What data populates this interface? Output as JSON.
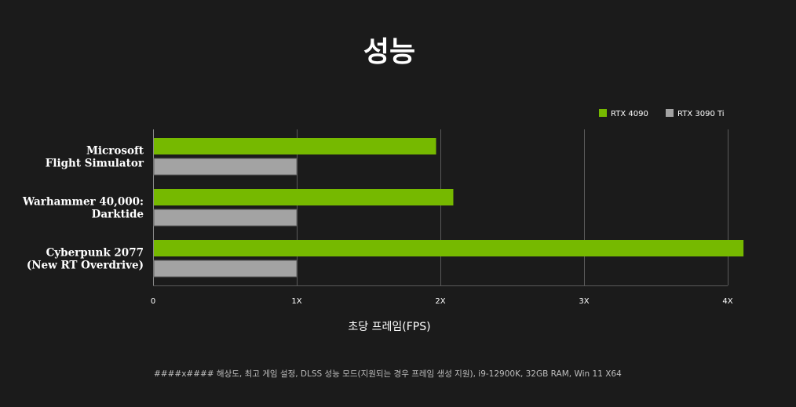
{
  "chart_data": {
    "type": "bar",
    "orientation": "horizontal",
    "title": "성능",
    "xlabel": "초당 프레임(FPS)",
    "ylabel": "",
    "categories": [
      [
        "Microsoft",
        "Flight Simulator"
      ],
      [
        "Warhammer 40,000:",
        "Darktide"
      ],
      [
        "Cyberpunk 2077",
        "(New RT Overdrive)"
      ]
    ],
    "series": [
      {
        "name": "RTX 4090",
        "color": "#76b900",
        "values": [
          1.97,
          2.09,
          4.11
        ]
      },
      {
        "name": "RTX 3090 Ti",
        "color": "#a3a3a3",
        "values": [
          1.0,
          1.0,
          1.0
        ]
      }
    ],
    "xlim": [
      0,
      4
    ],
    "xticks": [
      {
        "value": 0,
        "label": "0"
      },
      {
        "value": 1,
        "label": "1X"
      },
      {
        "value": 2,
        "label": "2X"
      },
      {
        "value": 3,
        "label": "3X"
      },
      {
        "value": 4,
        "label": "4X"
      }
    ],
    "grid": true,
    "legend_position": "top-right"
  },
  "footnote": "####x#### 해상도, 최고 게임 설정, DLSS 성능 모드(지원되는 경우 프레임 생성 지원), i9-12900K, 32GB RAM, Win 11 X64"
}
